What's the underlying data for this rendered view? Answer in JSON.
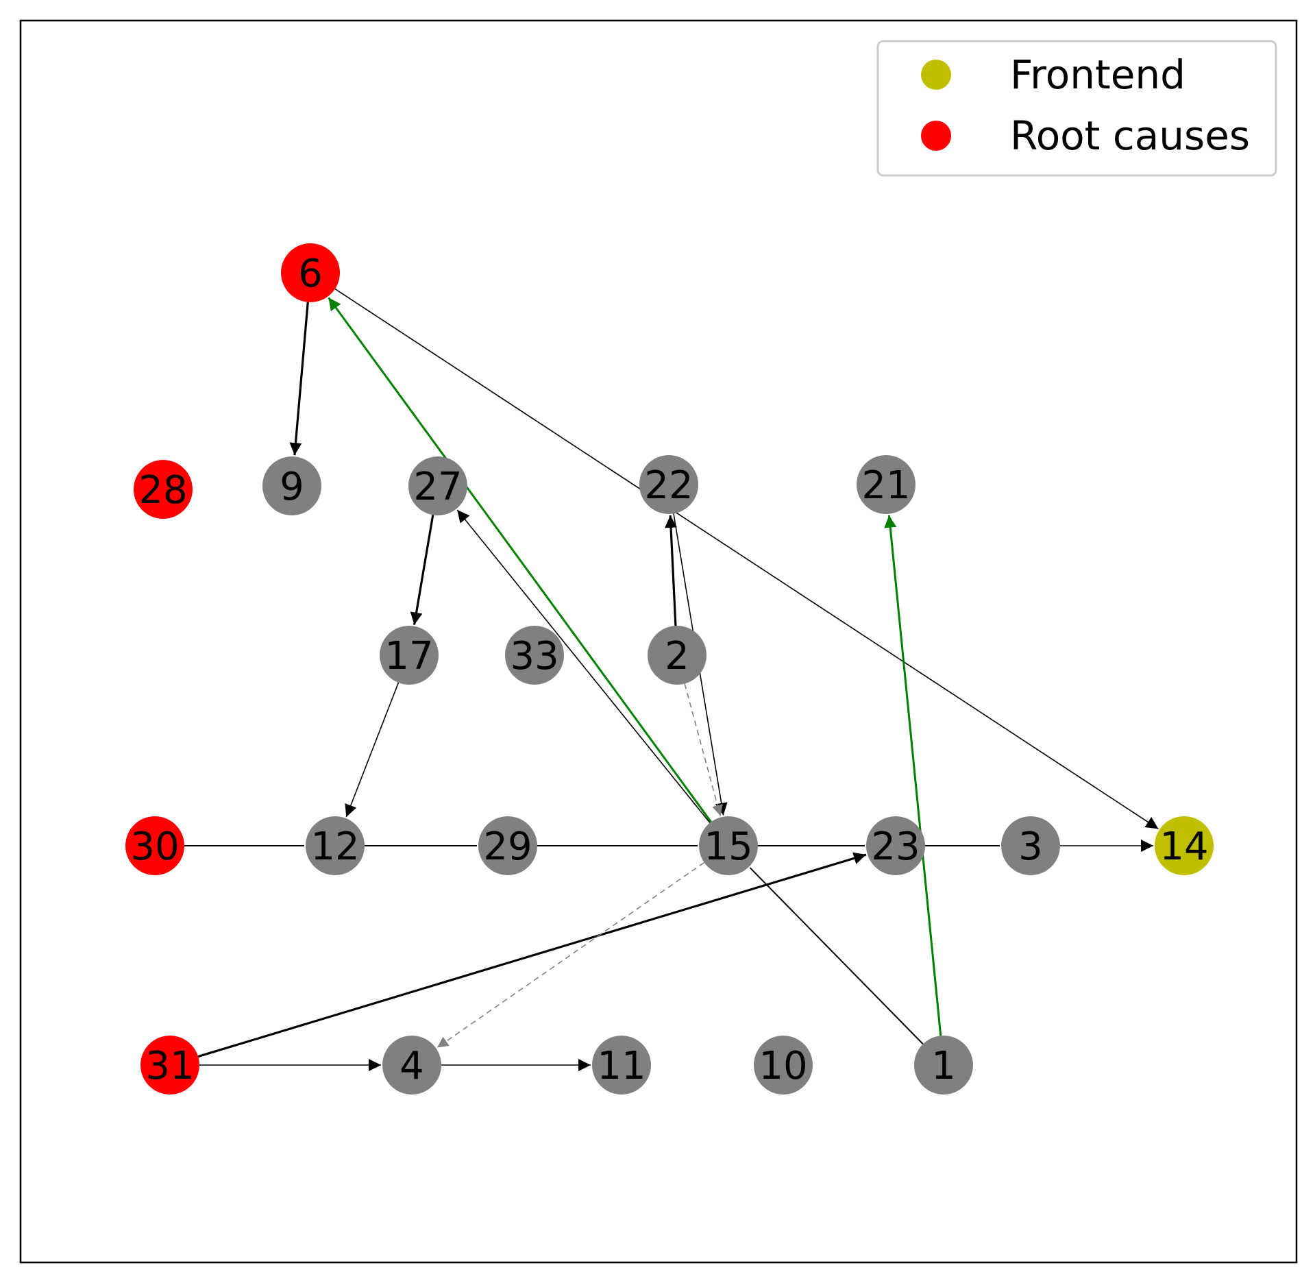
{
  "colors": {
    "frontend": "#bfbf00",
    "root_cause": "#ff0000",
    "default_node": "#808080",
    "edge": "#000000",
    "edge_highlight": "#008000",
    "edge_dashed": "#808080"
  },
  "legend": {
    "items": [
      {
        "label": "Frontend",
        "color": "#bfbf00"
      },
      {
        "label": "Root causes",
        "color": "#ff0000"
      }
    ]
  },
  "graph": {
    "nodes": [
      {
        "id": "6",
        "kind": "root_cause"
      },
      {
        "id": "28",
        "kind": "root_cause"
      },
      {
        "id": "9",
        "kind": "default"
      },
      {
        "id": "27",
        "kind": "default"
      },
      {
        "id": "22",
        "kind": "default"
      },
      {
        "id": "21",
        "kind": "default"
      },
      {
        "id": "17",
        "kind": "default"
      },
      {
        "id": "33",
        "kind": "default"
      },
      {
        "id": "2",
        "kind": "default"
      },
      {
        "id": "30",
        "kind": "root_cause"
      },
      {
        "id": "12",
        "kind": "default"
      },
      {
        "id": "29",
        "kind": "default"
      },
      {
        "id": "15",
        "kind": "default"
      },
      {
        "id": "23",
        "kind": "default"
      },
      {
        "id": "3",
        "kind": "default"
      },
      {
        "id": "14",
        "kind": "frontend"
      },
      {
        "id": "31",
        "kind": "root_cause"
      },
      {
        "id": "4",
        "kind": "default"
      },
      {
        "id": "11",
        "kind": "default"
      },
      {
        "id": "10",
        "kind": "default"
      },
      {
        "id": "1",
        "kind": "default"
      }
    ],
    "edges": [
      {
        "from": "6",
        "to": "9",
        "style": "bold"
      },
      {
        "from": "6",
        "to": "14",
        "style": "thin"
      },
      {
        "from": "27",
        "to": "17",
        "style": "bold"
      },
      {
        "from": "17",
        "to": "12",
        "style": "thin"
      },
      {
        "from": "2",
        "to": "22",
        "style": "bold"
      },
      {
        "from": "22",
        "to": "15",
        "style": "thin"
      },
      {
        "from": "2",
        "to": "15",
        "style": "dashed"
      },
      {
        "from": "15",
        "to": "27",
        "style": "thin"
      },
      {
        "from": "15",
        "to": "6",
        "style": "green"
      },
      {
        "from": "1",
        "to": "21",
        "style": "green"
      },
      {
        "from": "30",
        "to": "12",
        "style": "line"
      },
      {
        "from": "12",
        "to": "29",
        "style": "line"
      },
      {
        "from": "29",
        "to": "15",
        "style": "line"
      },
      {
        "from": "15",
        "to": "23",
        "style": "line"
      },
      {
        "from": "23",
        "to": "3",
        "style": "line"
      },
      {
        "from": "3",
        "to": "14",
        "style": "thin"
      },
      {
        "from": "1",
        "to": "15",
        "style": "line"
      },
      {
        "from": "31",
        "to": "23",
        "style": "bold"
      },
      {
        "from": "31",
        "to": "4",
        "style": "thin"
      },
      {
        "from": "4",
        "to": "11",
        "style": "thin"
      },
      {
        "from": "15",
        "to": "4",
        "style": "dashed"
      }
    ]
  }
}
